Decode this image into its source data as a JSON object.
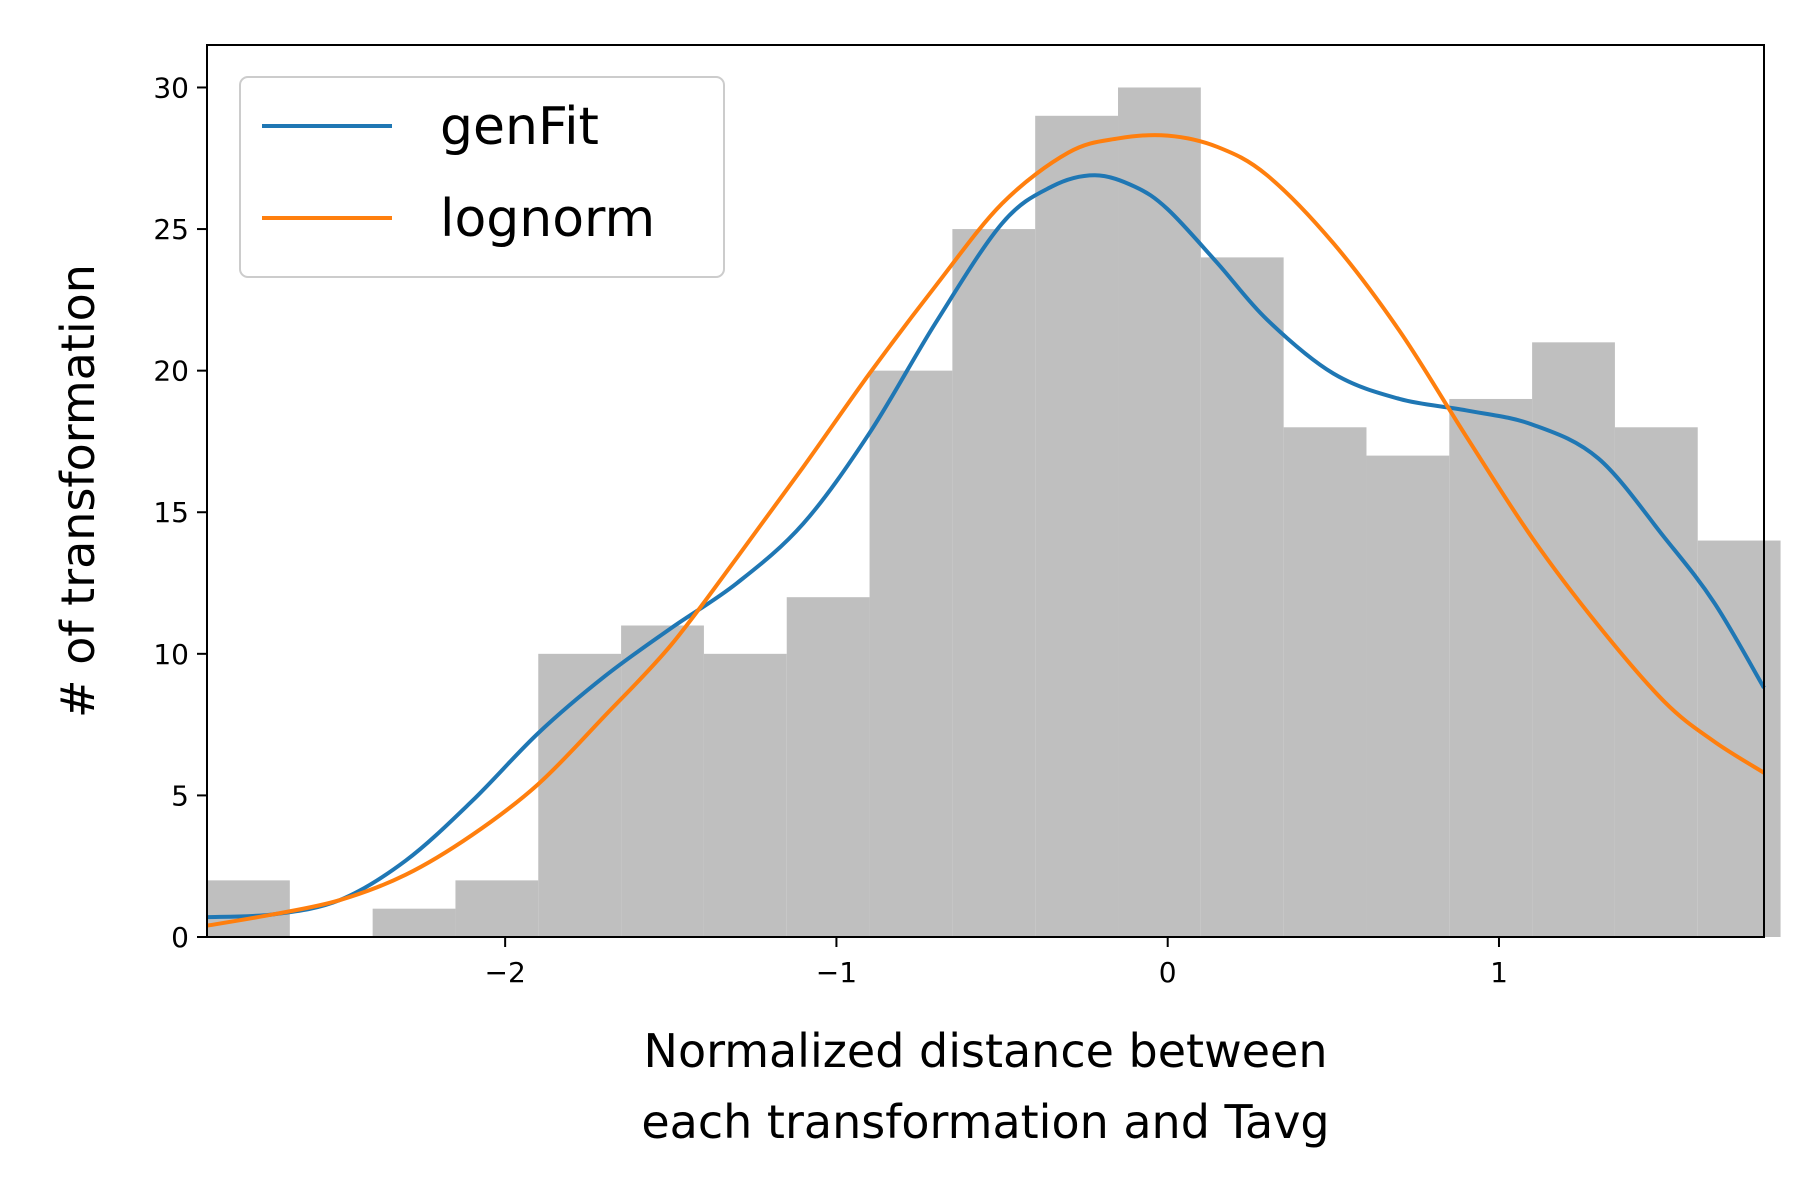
{
  "chart_data": {
    "type": "histogram",
    "title": "",
    "xlabel_lines": [
      "Normalized distance between",
      "each transformation and Tavg"
    ],
    "ylabel": "# of transformation",
    "xlim": [
      -2.9,
      1.8
    ],
    "ylim": [
      0,
      31.5
    ],
    "xticks": [
      -2,
      -1,
      0,
      1
    ],
    "xtick_labels": [
      "−2",
      "−1",
      "0",
      "1"
    ],
    "yticks": [
      0,
      5,
      10,
      15,
      20,
      25,
      30
    ],
    "ytick_labels": [
      "0",
      "5",
      "10",
      "15",
      "20",
      "25",
      "30"
    ],
    "grid": false,
    "legend_position": "top-left",
    "histogram": {
      "color": "#bfbfbf",
      "bin_width": 0.25,
      "bin_starts": [
        -2.9,
        -2.65,
        -2.4,
        -2.15,
        -1.9,
        -1.65,
        -1.4,
        -1.15,
        -0.9,
        -0.65,
        -0.4,
        -0.15,
        0.1,
        0.35,
        0.6,
        0.85,
        1.1,
        1.35,
        1.6
      ],
      "counts": [
        2,
        0,
        1,
        2,
        10,
        11,
        10,
        12,
        20,
        25,
        29,
        30,
        24,
        18,
        17,
        19,
        21,
        18,
        14
      ]
    },
    "series": [
      {
        "name": "genFit",
        "color": "#1f77b4",
        "x": [
          -2.9,
          -2.7,
          -2.5,
          -2.3,
          -2.1,
          -1.9,
          -1.7,
          -1.5,
          -1.3,
          -1.1,
          -0.9,
          -0.7,
          -0.5,
          -0.35,
          -0.22,
          -0.1,
          0.0,
          0.15,
          0.3,
          0.5,
          0.7,
          0.9,
          1.1,
          1.3,
          1.5,
          1.65,
          1.8
        ],
        "y": [
          0.7,
          0.8,
          1.3,
          2.7,
          4.8,
          7.2,
          9.2,
          10.9,
          12.5,
          14.6,
          17.8,
          21.7,
          25.2,
          26.5,
          26.9,
          26.5,
          25.7,
          23.8,
          21.8,
          19.9,
          19.0,
          18.6,
          18.1,
          16.9,
          14.1,
          11.8,
          8.8
        ]
      },
      {
        "name": "lognorm",
        "color": "#ff7f0e",
        "x": [
          -2.9,
          -2.7,
          -2.5,
          -2.3,
          -2.1,
          -1.9,
          -1.7,
          -1.5,
          -1.3,
          -1.1,
          -0.9,
          -0.7,
          -0.5,
          -0.3,
          -0.15,
          0.0,
          0.15,
          0.3,
          0.5,
          0.7,
          0.9,
          1.1,
          1.3,
          1.5,
          1.65,
          1.8
        ],
        "y": [
          0.4,
          0.8,
          1.3,
          2.2,
          3.6,
          5.4,
          7.8,
          10.3,
          13.4,
          16.6,
          19.9,
          23.0,
          25.9,
          27.7,
          28.2,
          28.3,
          27.9,
          26.9,
          24.5,
          21.4,
          17.7,
          14.1,
          11.0,
          8.3,
          6.9,
          5.8
        ]
      }
    ]
  }
}
